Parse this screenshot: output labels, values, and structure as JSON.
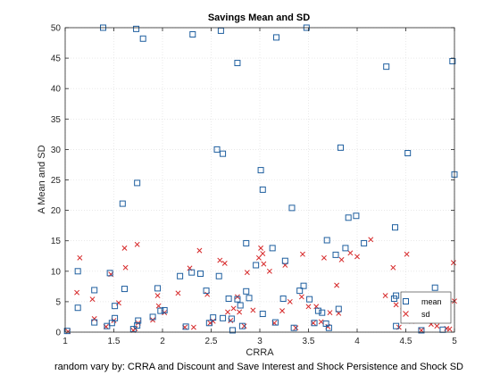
{
  "chart_data": {
    "type": "scatter",
    "title": "Savings Mean and SD",
    "xlabel": "CRRA",
    "ylabel": "A Mean and SD",
    "caption": "random vary by: CRRA and Discount and Save Interest and Shock Persistence and Shock SD",
    "xlim": [
      1,
      5
    ],
    "ylim": [
      0,
      50
    ],
    "x_ticks": [
      "1",
      "1.5",
      "2",
      "2.5",
      "3",
      "3.5",
      "4",
      "4.5",
      "5"
    ],
    "y_ticks": [
      "0",
      "5",
      "10",
      "15",
      "20",
      "25",
      "30",
      "35",
      "40",
      "45",
      "50"
    ],
    "grid": true,
    "legend_position": "bottom-right inside",
    "series": [
      {
        "name": "mean",
        "marker": "square",
        "color": "#1f5f9f",
        "points": [
          [
            1.02,
            0.2
          ],
          [
            1.13,
            10.0
          ],
          [
            1.13,
            4.0
          ],
          [
            1.3,
            6.9
          ],
          [
            1.3,
            1.6
          ],
          [
            1.39,
            50.0
          ],
          [
            1.43,
            1.0
          ],
          [
            1.46,
            9.7
          ],
          [
            1.48,
            1.5
          ],
          [
            1.51,
            4.3
          ],
          [
            1.51,
            2.3
          ],
          [
            1.59,
            21.1
          ],
          [
            1.61,
            7.1
          ],
          [
            1.7,
            0.5
          ],
          [
            1.73,
            49.8
          ],
          [
            1.74,
            24.5
          ],
          [
            1.74,
            1.1
          ],
          [
            1.75,
            1.9
          ],
          [
            1.8,
            48.2
          ],
          [
            1.9,
            2.5
          ],
          [
            1.95,
            7.2
          ],
          [
            1.98,
            3.5
          ],
          [
            2.02,
            3.6
          ],
          [
            2.18,
            9.2
          ],
          [
            2.24,
            0.9
          ],
          [
            2.3,
            9.8
          ],
          [
            2.31,
            48.9
          ],
          [
            2.39,
            9.6
          ],
          [
            2.45,
            6.8
          ],
          [
            2.48,
            1.5
          ],
          [
            2.52,
            2.4
          ],
          [
            2.56,
            30.0
          ],
          [
            2.58,
            9.2
          ],
          [
            2.6,
            49.5
          ],
          [
            2.62,
            29.3
          ],
          [
            2.62,
            2.3
          ],
          [
            2.68,
            5.5
          ],
          [
            2.71,
            2.2
          ],
          [
            2.72,
            0.3
          ],
          [
            2.77,
            5.4
          ],
          [
            2.77,
            44.2
          ],
          [
            2.8,
            4.4
          ],
          [
            2.82,
            1.0
          ],
          [
            2.86,
            14.6
          ],
          [
            2.86,
            6.7
          ],
          [
            2.89,
            5.6
          ],
          [
            2.96,
            11.0
          ],
          [
            3.01,
            26.6
          ],
          [
            3.03,
            23.4
          ],
          [
            3.03,
            3.0
          ],
          [
            3.13,
            13.8
          ],
          [
            3.16,
            1.6
          ],
          [
            3.17,
            48.4
          ],
          [
            3.24,
            5.5
          ],
          [
            3.26,
            11.7
          ],
          [
            3.33,
            20.4
          ],
          [
            3.35,
            0.7
          ],
          [
            3.41,
            6.8
          ],
          [
            3.45,
            7.6
          ],
          [
            3.48,
            50.0
          ],
          [
            3.51,
            5.4
          ],
          [
            3.56,
            1.5
          ],
          [
            3.6,
            3.5
          ],
          [
            3.64,
            3.2
          ],
          [
            3.68,
            1.4
          ],
          [
            3.69,
            15.1
          ],
          [
            3.71,
            0.7
          ],
          [
            3.78,
            12.7
          ],
          [
            3.81,
            3.8
          ],
          [
            3.83,
            30.3
          ],
          [
            3.88,
            13.8
          ],
          [
            3.91,
            18.8
          ],
          [
            3.99,
            19.1
          ],
          [
            4.07,
            14.6
          ],
          [
            4.3,
            43.6
          ],
          [
            4.38,
            5.5
          ],
          [
            4.39,
            17.2
          ],
          [
            4.4,
            6.0
          ],
          [
            4.4,
            1.0
          ],
          [
            4.49,
            2.8
          ],
          [
            4.52,
            29.4
          ],
          [
            4.55,
            5.3
          ],
          [
            4.61,
            2.2
          ],
          [
            4.66,
            0.3
          ],
          [
            4.74,
            2.3
          ],
          [
            4.8,
            7.3
          ],
          [
            4.85,
            2.4
          ],
          [
            4.88,
            0.4
          ],
          [
            4.93,
            2.3
          ],
          [
            4.98,
            44.5
          ],
          [
            5.0,
            25.9
          ]
        ]
      },
      {
        "name": "sd",
        "marker": "x",
        "color": "#d62728",
        "points": [
          [
            1.03,
            0.1
          ],
          [
            1.12,
            6.5
          ],
          [
            1.15,
            12.2
          ],
          [
            1.28,
            5.4
          ],
          [
            1.3,
            2.2
          ],
          [
            1.42,
            0.9
          ],
          [
            1.47,
            9.5
          ],
          [
            1.5,
            1.9
          ],
          [
            1.55,
            4.8
          ],
          [
            1.61,
            13.8
          ],
          [
            1.62,
            10.6
          ],
          [
            1.7,
            0.3
          ],
          [
            1.72,
            0.6
          ],
          [
            1.74,
            14.4
          ],
          [
            1.75,
            1.5
          ],
          [
            1.9,
            2.0
          ],
          [
            1.95,
            6.0
          ],
          [
            1.96,
            4.3
          ],
          [
            2.02,
            3.2
          ],
          [
            2.16,
            6.4
          ],
          [
            2.23,
            0.8
          ],
          [
            2.28,
            10.5
          ],
          [
            2.32,
            0.8
          ],
          [
            2.38,
            13.4
          ],
          [
            2.46,
            6.2
          ],
          [
            2.49,
            1.5
          ],
          [
            2.52,
            1.8
          ],
          [
            2.59,
            11.8
          ],
          [
            2.64,
            11.3
          ],
          [
            2.67,
            3.3
          ],
          [
            2.7,
            1.9
          ],
          [
            2.73,
            3.9
          ],
          [
            2.77,
            5.8
          ],
          [
            2.79,
            3.3
          ],
          [
            2.84,
            1.0
          ],
          [
            2.87,
            9.8
          ],
          [
            2.93,
            3.6
          ],
          [
            2.99,
            12.2
          ],
          [
            3.01,
            13.8
          ],
          [
            3.03,
            12.9
          ],
          [
            3.04,
            11.2
          ],
          [
            3.1,
            10.0
          ],
          [
            3.15,
            1.5
          ],
          [
            3.23,
            3.5
          ],
          [
            3.26,
            11.0
          ],
          [
            3.31,
            5.0
          ],
          [
            3.37,
            0.7
          ],
          [
            3.43,
            5.8
          ],
          [
            3.44,
            12.8
          ],
          [
            3.5,
            4.2
          ],
          [
            3.55,
            1.5
          ],
          [
            3.58,
            4.2
          ],
          [
            3.63,
            1.7
          ],
          [
            3.66,
            12.2
          ],
          [
            3.7,
            0.9
          ],
          [
            3.72,
            3.2
          ],
          [
            3.79,
            7.7
          ],
          [
            3.81,
            3.1
          ],
          [
            3.84,
            11.9
          ],
          [
            3.93,
            13.0
          ],
          [
            4.0,
            12.4
          ],
          [
            4.14,
            15.2
          ],
          [
            4.29,
            6.0
          ],
          [
            4.37,
            10.6
          ],
          [
            4.4,
            4.5
          ],
          [
            4.43,
            0.8
          ],
          [
            4.47,
            3.5
          ],
          [
            4.48,
            2.3
          ],
          [
            4.51,
            12.8
          ],
          [
            4.56,
            1.8
          ],
          [
            4.66,
            0.3
          ],
          [
            4.76,
            1.3
          ],
          [
            4.82,
            1.0
          ],
          [
            4.87,
            2.0
          ],
          [
            4.92,
            0.6
          ],
          [
            4.99,
            11.4
          ],
          [
            5.0,
            5.1
          ],
          [
            4.95,
            0.5
          ]
        ]
      }
    ]
  }
}
